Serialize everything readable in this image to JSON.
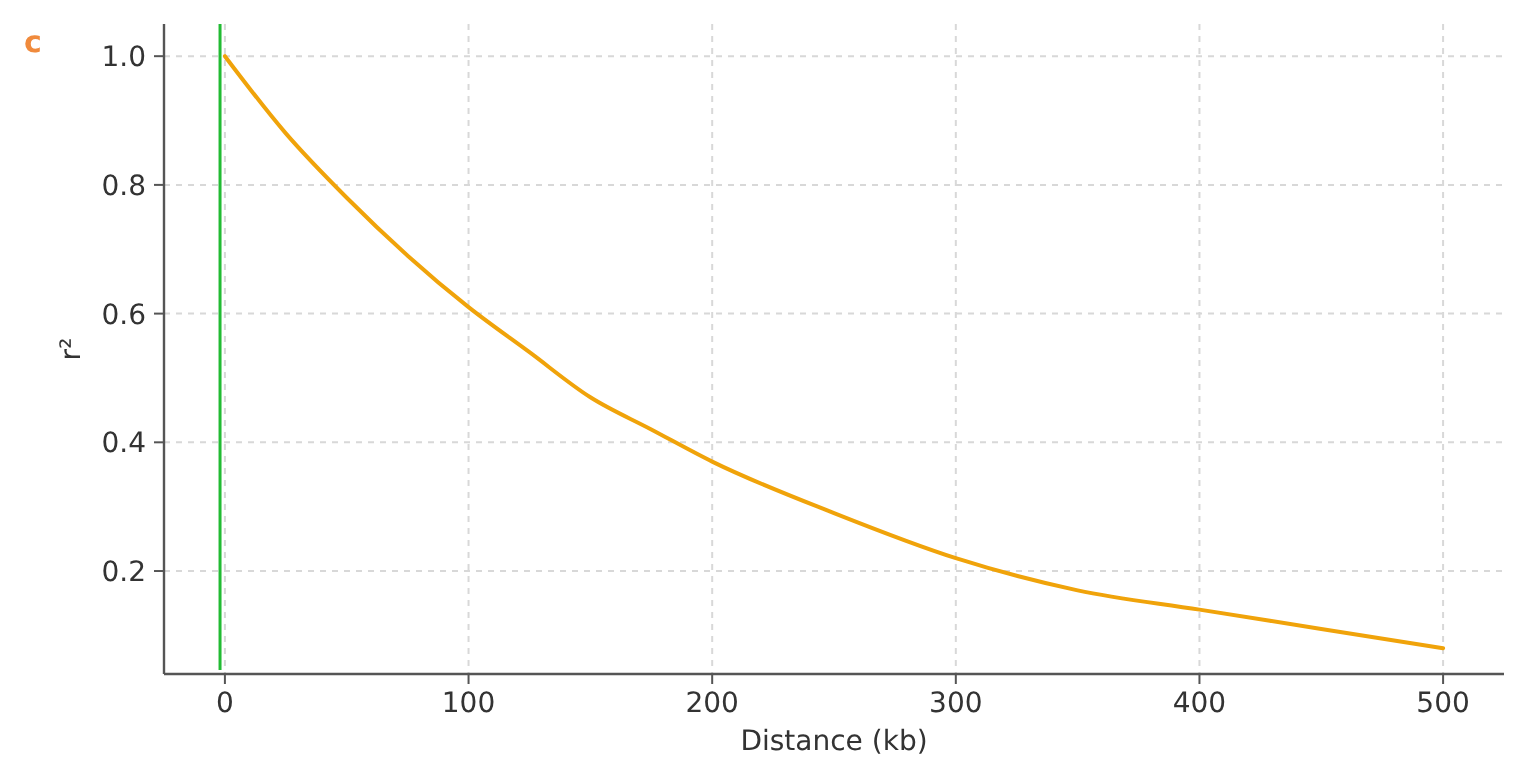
{
  "chart_data": {
    "type": "line",
    "xlabel": "Distance (kb)",
    "ylabel": "r²",
    "annotations": [
      "c"
    ],
    "x": [
      0,
      25,
      50,
      75,
      100,
      125,
      150,
      175,
      200,
      250,
      300,
      350,
      400,
      450,
      500
    ],
    "series": [
      {
        "color": "#f0a30a",
        "values": [
          1.0,
          0.88,
          0.78,
          0.69,
          0.61,
          0.54,
          0.47,
          0.42,
          0.37,
          0.29,
          0.22,
          0.17,
          0.14,
          0.11,
          0.08
        ]
      }
    ],
    "xlim": [
      -25,
      525
    ],
    "ylim": [
      0.04,
      1.05
    ],
    "xticks": [
      {
        "value": 0,
        "label": "0"
      },
      100,
      200,
      300,
      400,
      500
    ],
    "yticks": [
      0.2,
      0.4,
      0.6,
      0.8,
      {
        "value": 1.0,
        "label": "1.0"
      }
    ],
    "ref_lines": [
      {
        "axis": "x",
        "value": -2,
        "color": "#22bb33"
      }
    ],
    "grid": true,
    "marker": "none",
    "line_style": "solid"
  }
}
